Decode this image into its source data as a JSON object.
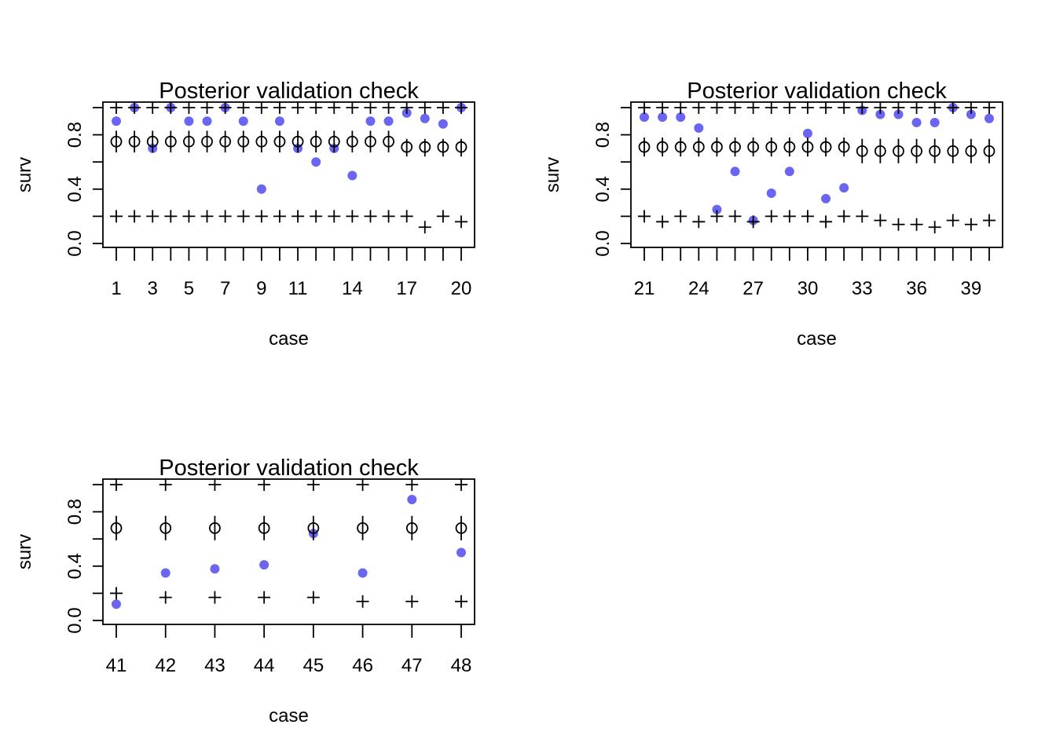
{
  "chart_data": [
    {
      "type": "scatter",
      "title": "Posterior validation check",
      "xlabel": "case",
      "ylabel": "surv",
      "x_tick_labels": [
        "1",
        "3",
        "5",
        "7",
        "9",
        "11",
        "14",
        "17",
        "20"
      ],
      "y_tick_labels": [
        "0.0",
        "0.4",
        "0.8"
      ],
      "ylim": [
        0.0,
        1.0
      ],
      "colors": {
        "observed": "#6B66F2",
        "interval": "#000000"
      },
      "x": [
        1,
        2,
        3,
        4,
        5,
        6,
        7,
        8,
        9,
        10,
        11,
        12,
        13,
        14,
        15,
        16,
        17,
        18,
        19,
        20
      ],
      "series": [
        {
          "role": "observed",
          "marker": "filled-circle",
          "values": [
            0.9,
            1.0,
            0.7,
            1.0,
            0.9,
            0.9,
            1.0,
            0.9,
            0.4,
            0.9,
            0.7,
            0.6,
            0.7,
            0.5,
            0.9,
            0.9,
            0.96,
            0.92,
            0.88,
            1.0
          ]
        },
        {
          "role": "upper",
          "marker": "plus",
          "values": [
            1,
            1,
            1,
            1,
            1,
            1,
            1,
            1,
            1,
            1,
            1,
            1,
            1,
            1,
            1,
            1,
            1,
            1,
            1,
            1
          ]
        },
        {
          "role": "median",
          "marker": "open-circle-bar",
          "values": [
            0.75,
            0.75,
            0.75,
            0.75,
            0.75,
            0.75,
            0.75,
            0.75,
            0.75,
            0.75,
            0.75,
            0.75,
            0.75,
            0.75,
            0.75,
            0.75,
            0.71,
            0.71,
            0.71,
            0.71
          ],
          "lo": [
            0.67,
            0.67,
            0.67,
            0.67,
            0.67,
            0.67,
            0.67,
            0.67,
            0.67,
            0.67,
            0.67,
            0.67,
            0.67,
            0.67,
            0.67,
            0.67,
            0.64,
            0.64,
            0.64,
            0.64
          ],
          "hi": [
            0.83,
            0.83,
            0.83,
            0.83,
            0.83,
            0.83,
            0.83,
            0.83,
            0.83,
            0.83,
            0.83,
            0.83,
            0.83,
            0.83,
            0.83,
            0.83,
            0.77,
            0.77,
            0.77,
            0.77
          ]
        },
        {
          "role": "lower",
          "marker": "plus",
          "values": [
            0.2,
            0.2,
            0.2,
            0.2,
            0.2,
            0.2,
            0.2,
            0.2,
            0.2,
            0.2,
            0.2,
            0.2,
            0.2,
            0.2,
            0.2,
            0.2,
            0.2,
            0.12,
            0.2,
            0.16
          ]
        }
      ]
    },
    {
      "type": "scatter",
      "title": "Posterior validation check",
      "xlabel": "case",
      "ylabel": "surv",
      "x_tick_labels": [
        "21",
        "24",
        "27",
        "30",
        "33",
        "36",
        "39"
      ],
      "y_tick_labels": [
        "0.0",
        "0.4",
        "0.8"
      ],
      "ylim": [
        0.0,
        1.0
      ],
      "colors": {
        "observed": "#6B66F2",
        "interval": "#000000"
      },
      "x": [
        21,
        22,
        23,
        24,
        25,
        26,
        27,
        28,
        29,
        30,
        31,
        32,
        33,
        34,
        35,
        36,
        37,
        38,
        39,
        40
      ],
      "series": [
        {
          "role": "observed",
          "marker": "filled-circle",
          "values": [
            0.93,
            0.93,
            0.93,
            0.85,
            0.25,
            0.53,
            0.17,
            0.37,
            0.53,
            0.81,
            0.33,
            0.41,
            0.98,
            0.95,
            0.95,
            0.89,
            0.89,
            1.0,
            0.95,
            0.92
          ]
        },
        {
          "role": "upper",
          "marker": "plus",
          "values": [
            1,
            1,
            1,
            1,
            1,
            1,
            1,
            1,
            1,
            1,
            1,
            1,
            1,
            1,
            1,
            1,
            1,
            1,
            1,
            1
          ]
        },
        {
          "role": "median",
          "marker": "open-circle-bar",
          "values": [
            0.71,
            0.71,
            0.71,
            0.71,
            0.71,
            0.71,
            0.71,
            0.71,
            0.71,
            0.71,
            0.71,
            0.71,
            0.68,
            0.68,
            0.68,
            0.68,
            0.68,
            0.68,
            0.68,
            0.68
          ],
          "lo": [
            0.64,
            0.64,
            0.64,
            0.64,
            0.64,
            0.64,
            0.64,
            0.64,
            0.64,
            0.64,
            0.64,
            0.64,
            0.59,
            0.59,
            0.59,
            0.59,
            0.59,
            0.59,
            0.59,
            0.59
          ],
          "hi": [
            0.78,
            0.78,
            0.78,
            0.78,
            0.78,
            0.78,
            0.78,
            0.78,
            0.78,
            0.78,
            0.78,
            0.78,
            0.77,
            0.77,
            0.77,
            0.77,
            0.77,
            0.77,
            0.77,
            0.77
          ]
        },
        {
          "role": "lower",
          "marker": "plus",
          "values": [
            0.2,
            0.16,
            0.2,
            0.16,
            0.2,
            0.2,
            0.16,
            0.2,
            0.2,
            0.2,
            0.16,
            0.2,
            0.2,
            0.17,
            0.14,
            0.14,
            0.12,
            0.17,
            0.14,
            0.17
          ]
        }
      ]
    },
    {
      "type": "scatter",
      "title": "Posterior validation check",
      "xlabel": "case",
      "ylabel": "surv",
      "x_tick_labels": [
        "41",
        "42",
        "43",
        "44",
        "45",
        "46",
        "47",
        "48"
      ],
      "y_tick_labels": [
        "0.0",
        "0.4",
        "0.8"
      ],
      "ylim": [
        0.0,
        1.0
      ],
      "colors": {
        "observed": "#6B66F2",
        "interval": "#000000"
      },
      "x": [
        41,
        42,
        43,
        44,
        45,
        46,
        47,
        48
      ],
      "series": [
        {
          "role": "observed",
          "marker": "filled-circle",
          "values": [
            0.12,
            0.35,
            0.38,
            0.41,
            0.64,
            0.35,
            0.89,
            0.5
          ]
        },
        {
          "role": "upper",
          "marker": "plus",
          "values": [
            1,
            1,
            1,
            1,
            1,
            1,
            1,
            1
          ]
        },
        {
          "role": "median",
          "marker": "open-circle-bar",
          "values": [
            0.68,
            0.68,
            0.68,
            0.68,
            0.68,
            0.68,
            0.68,
            0.68
          ],
          "lo": [
            0.59,
            0.59,
            0.59,
            0.59,
            0.59,
            0.59,
            0.59,
            0.59
          ],
          "hi": [
            0.77,
            0.77,
            0.77,
            0.77,
            0.77,
            0.77,
            0.77,
            0.77
          ]
        },
        {
          "role": "lower",
          "marker": "plus",
          "values": [
            0.2,
            0.17,
            0.17,
            0.17,
            0.17,
            0.14,
            0.14,
            0.14
          ]
        }
      ]
    }
  ]
}
